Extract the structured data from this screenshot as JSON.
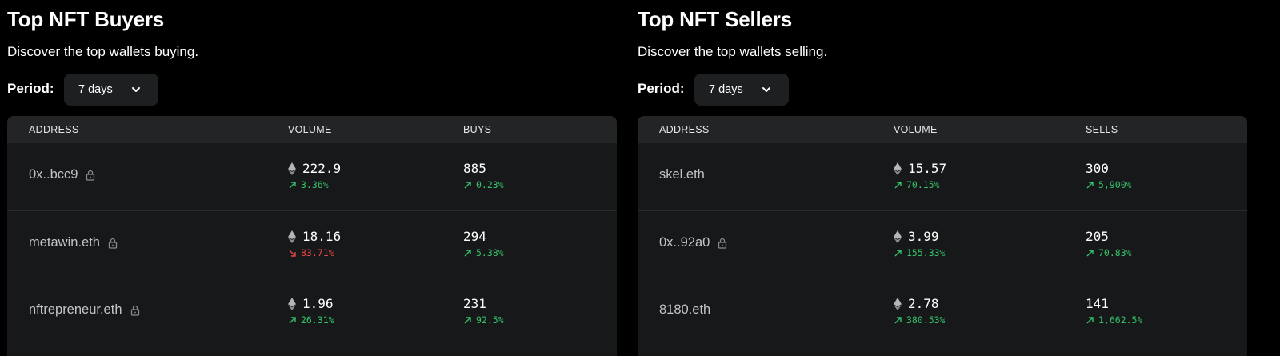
{
  "colors": {
    "background": "#000000",
    "panel": "#17181a",
    "header": "#232426",
    "up": "#36c26a",
    "down": "#ec4545"
  },
  "buyers": {
    "title": "Top NFT Buyers",
    "subtitle": "Discover the top wallets buying.",
    "period_label": "Period:",
    "period_value": "7 days",
    "columns": [
      "ADDRESS",
      "VOLUME",
      "BUYS"
    ],
    "rows": [
      {
        "address": "0x..bcc9",
        "locked": true,
        "volume": "222.9",
        "volume_change": "3.36%",
        "volume_dir": "up",
        "count": "885",
        "count_change": "0.23%",
        "count_dir": "up"
      },
      {
        "address": "metawin.eth",
        "locked": true,
        "volume": "18.16",
        "volume_change": "83.71%",
        "volume_dir": "down",
        "count": "294",
        "count_change": "5.38%",
        "count_dir": "up"
      },
      {
        "address": "nftrepreneur.eth",
        "locked": true,
        "volume": "1.96",
        "volume_change": "26.31%",
        "volume_dir": "up",
        "count": "231",
        "count_change": "92.5%",
        "count_dir": "up"
      }
    ]
  },
  "sellers": {
    "title": "Top NFT Sellers",
    "subtitle": "Discover the top wallets selling.",
    "period_label": "Period:",
    "period_value": "7 days",
    "columns": [
      "ADDRESS",
      "VOLUME",
      "SELLS"
    ],
    "rows": [
      {
        "address": "skel.eth",
        "locked": false,
        "volume": "15.57",
        "volume_change": "70.15%",
        "volume_dir": "up",
        "count": "300",
        "count_change": "5,900%",
        "count_dir": "up"
      },
      {
        "address": "0x..92a0",
        "locked": true,
        "volume": "3.99",
        "volume_change": "155.33%",
        "volume_dir": "up",
        "count": "205",
        "count_change": "70.83%",
        "count_dir": "up"
      },
      {
        "address": "8180.eth",
        "locked": false,
        "volume": "2.78",
        "volume_change": "380.53%",
        "volume_dir": "up",
        "count": "141",
        "count_change": "1,662.5%",
        "count_dir": "up"
      }
    ]
  }
}
